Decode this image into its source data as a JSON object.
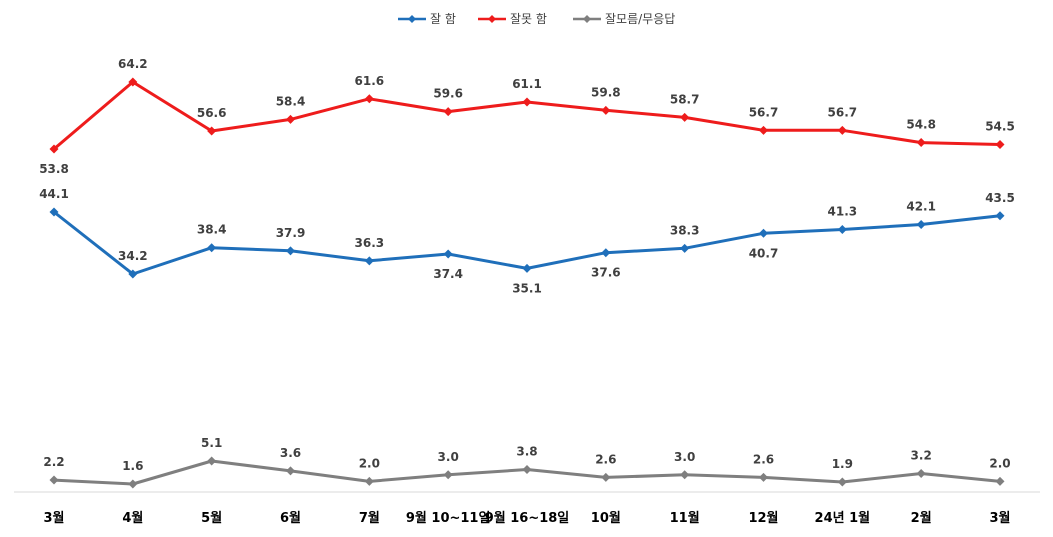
{
  "chart_data": {
    "type": "line",
    "categories": [
      "3월",
      "4월",
      "5월",
      "6월",
      "7월",
      "9월 10~11일",
      "9월 16~18일",
      "10월",
      "11월",
      "12월",
      "24년 1월",
      "2월",
      "3월"
    ],
    "series": [
      {
        "name": "잘 함",
        "color": "#1f6fba",
        "values": [
          44.1,
          34.2,
          38.4,
          37.9,
          36.3,
          37.4,
          35.1,
          37.6,
          38.3,
          40.7,
          41.3,
          42.1,
          43.5
        ],
        "label_pos": [
          "above",
          "above",
          "above",
          "above",
          "above",
          "below",
          "below",
          "below",
          "above",
          "below",
          "above",
          "above",
          "above"
        ]
      },
      {
        "name": "잘못 함",
        "color": "#ee1c1c",
        "values": [
          53.8,
          64.2,
          56.6,
          58.4,
          61.6,
          59.6,
          61.1,
          59.8,
          58.7,
          56.7,
          56.7,
          54.8,
          54.5
        ],
        "label_pos": [
          "below",
          "above",
          "above",
          "above",
          "above",
          "above",
          "above",
          "above",
          "above",
          "above",
          "above",
          "above",
          "above"
        ]
      },
      {
        "name": "잘모름/무응답",
        "color": "#7f7f7f",
        "values": [
          2.2,
          1.6,
          5.1,
          3.6,
          2.0,
          3.0,
          3.8,
          2.6,
          3.0,
          2.6,
          1.9,
          3.2,
          2.0
        ],
        "label_pos": [
          "above",
          "above",
          "above",
          "above",
          "above",
          "above",
          "above",
          "above",
          "above",
          "above",
          "above",
          "above",
          "above"
        ]
      }
    ],
    "legend_position": "top-center",
    "grid": false
  }
}
